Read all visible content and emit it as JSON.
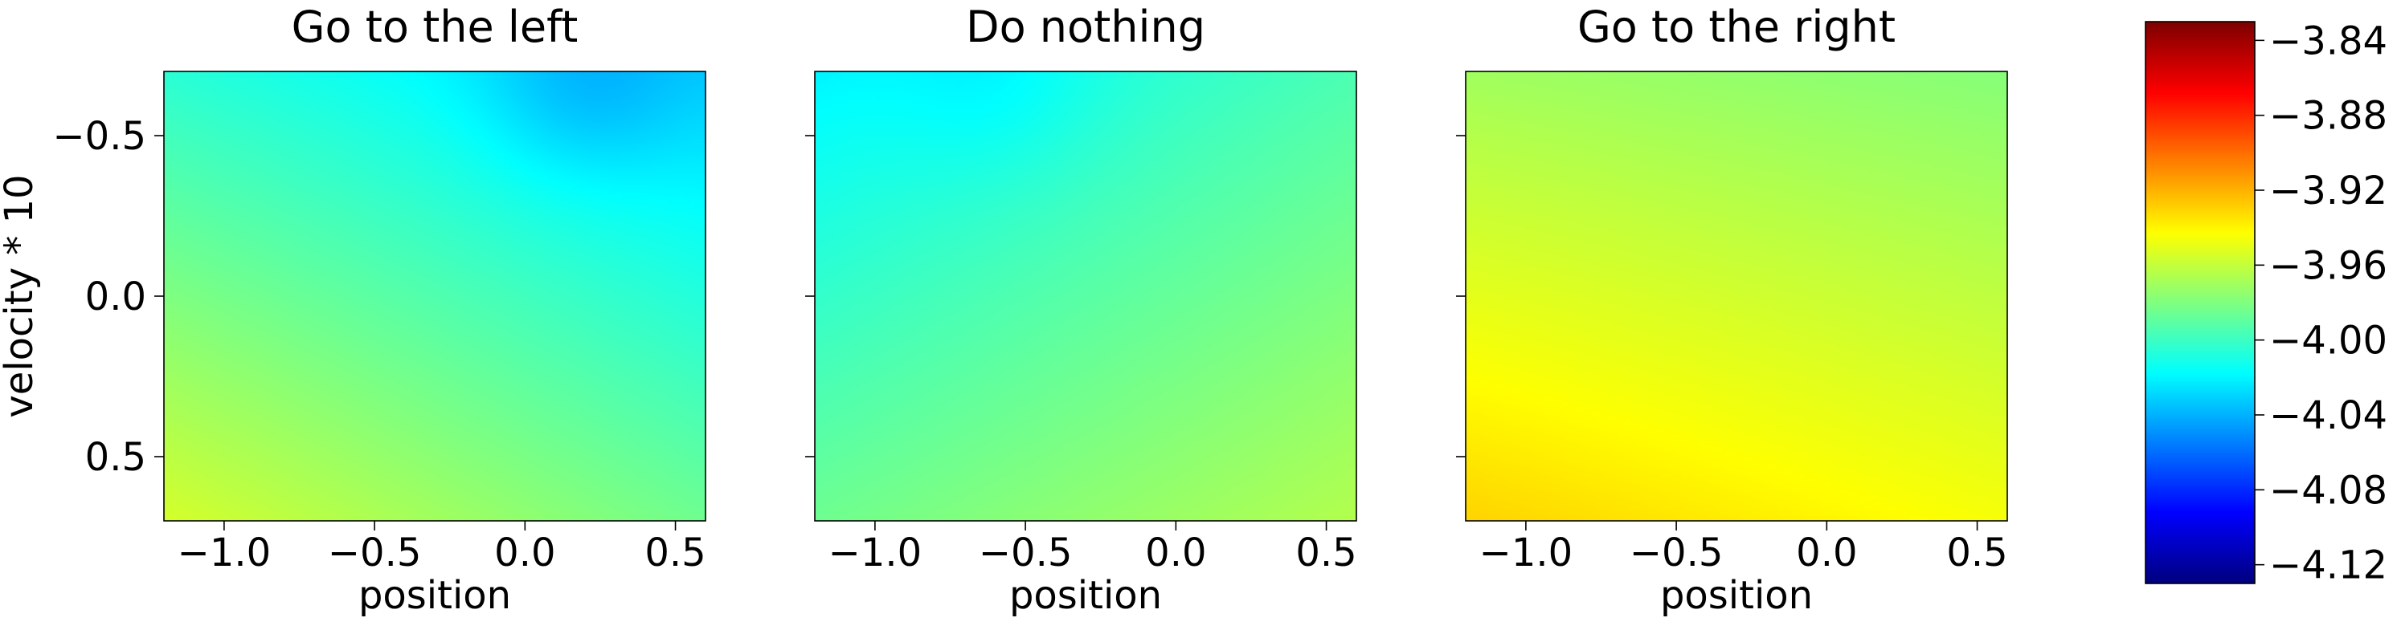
{
  "chart_data": {
    "type": "heatmap",
    "panels": [
      {
        "title": "Go to the left",
        "xlabel": "position",
        "ylabel": "velocity * 10",
        "show_yticks": true,
        "xlim": [
          -1.2,
          0.6
        ],
        "ylim": [
          -0.7,
          0.7
        ],
        "xticks": [
          -1.0,
          -0.5,
          0.0,
          0.5
        ],
        "xtick_labels": [
          "−1.0",
          "−0.5",
          "0.0",
          "0.5"
        ],
        "yticks": [
          -0.5,
          0.0,
          0.5
        ],
        "ytick_labels": [
          "−0.5",
          "0.0",
          "0.5"
        ],
        "corner_values": {
          "top_left": -4.005,
          "top_right": -4.03,
          "bottom_left": -3.955,
          "bottom_right": -3.985
        },
        "dip": {
          "x": 0.2,
          "y": -0.65,
          "depth": -0.015
        }
      },
      {
        "title": "Do nothing",
        "xlabel": "position",
        "ylabel": "",
        "show_yticks": false,
        "xlim": [
          -1.2,
          0.6
        ],
        "ylim": [
          -0.7,
          0.7
        ],
        "xticks": [
          -1.0,
          -0.5,
          0.0,
          0.5
        ],
        "xtick_labels": [
          "−1.0",
          "−0.5",
          "0.0",
          "0.5"
        ],
        "yticks": [
          -0.5,
          0.0,
          0.5
        ],
        "ytick_labels": [
          "",
          "",
          ""
        ],
        "corner_values": {
          "top_left": -4.02,
          "top_right": -3.995,
          "bottom_left": -3.985,
          "bottom_right": -3.965
        },
        "dip": {
          "x": -0.6,
          "y": -0.65,
          "depth": -0.008
        }
      },
      {
        "title": "Go to the right",
        "xlabel": "position",
        "ylabel": "",
        "show_yticks": false,
        "xlim": [
          -1.2,
          0.6
        ],
        "ylim": [
          -0.7,
          0.7
        ],
        "xticks": [
          -1.0,
          -0.5,
          0.0,
          0.5
        ],
        "xtick_labels": [
          "−1.0",
          "−0.5",
          "0.0",
          "0.5"
        ],
        "yticks": [
          -0.5,
          0.0,
          0.5
        ],
        "ytick_labels": [
          "",
          "",
          ""
        ],
        "corner_values": {
          "top_left": -3.97,
          "top_right": -3.978,
          "bottom_left": -3.93,
          "bottom_right": -3.945
        },
        "dip": null
      }
    ],
    "colorbar": {
      "colormap": "jet",
      "vmin": -4.13,
      "vmax": -3.83,
      "ticks": [
        -3.84,
        -3.88,
        -3.92,
        -3.96,
        -4.0,
        -4.04,
        -4.08,
        -4.12
      ],
      "tick_labels": [
        "−3.84",
        "−3.88",
        "−3.92",
        "−3.96",
        "−4.00",
        "−4.04",
        "−4.08",
        "−4.12"
      ]
    },
    "grid": false
  }
}
